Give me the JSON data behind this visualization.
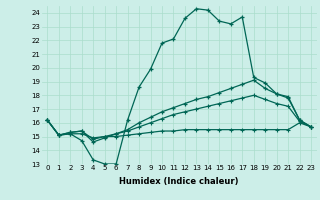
{
  "xlabel": "Humidex (Indice chaleur)",
  "bg_color": "#cceee8",
  "grid_color": "#aaddcc",
  "line_color": "#006655",
  "xlim": [
    -0.5,
    23.5
  ],
  "ylim": [
    13,
    24.5
  ],
  "yticks": [
    13,
    14,
    15,
    16,
    17,
    18,
    19,
    20,
    21,
    22,
    23,
    24
  ],
  "xticks": [
    0,
    1,
    2,
    3,
    4,
    5,
    6,
    7,
    8,
    9,
    10,
    11,
    12,
    13,
    14,
    15,
    16,
    17,
    18,
    19,
    20,
    21,
    22,
    23
  ],
  "line1_x": [
    0,
    1,
    2,
    3,
    4,
    5,
    6,
    7,
    8,
    9,
    10,
    11,
    12,
    13,
    14,
    15,
    16,
    17,
    18,
    19,
    20,
    21,
    22,
    23
  ],
  "line1_y": [
    16.2,
    15.1,
    15.2,
    14.7,
    13.3,
    13.0,
    13.0,
    16.2,
    18.6,
    19.9,
    21.8,
    22.1,
    23.6,
    24.3,
    24.2,
    23.4,
    23.2,
    23.7,
    19.3,
    18.9,
    18.1,
    17.8,
    16.2,
    15.7
  ],
  "line2_x": [
    0,
    1,
    2,
    3,
    4,
    5,
    6,
    7,
    8,
    9,
    10,
    11,
    12,
    13,
    14,
    15,
    16,
    17,
    18,
    19,
    20,
    21,
    22,
    23
  ],
  "line2_y": [
    16.2,
    15.1,
    15.3,
    15.4,
    14.6,
    14.9,
    15.2,
    15.5,
    16.0,
    16.4,
    16.8,
    17.1,
    17.4,
    17.7,
    17.9,
    18.2,
    18.5,
    18.8,
    19.1,
    18.5,
    18.1,
    17.9,
    16.2,
    15.7
  ],
  "line3_x": [
    0,
    1,
    2,
    3,
    4,
    5,
    6,
    7,
    8,
    9,
    10,
    11,
    12,
    13,
    14,
    15,
    16,
    17,
    18,
    19,
    20,
    21,
    22,
    23
  ],
  "line3_y": [
    16.2,
    15.1,
    15.3,
    15.4,
    14.8,
    15.0,
    15.2,
    15.4,
    15.7,
    16.0,
    16.3,
    16.6,
    16.8,
    17.0,
    17.2,
    17.4,
    17.6,
    17.8,
    18.0,
    17.7,
    17.4,
    17.2,
    16.1,
    15.7
  ],
  "line4_x": [
    0,
    1,
    2,
    3,
    4,
    5,
    6,
    7,
    8,
    9,
    10,
    11,
    12,
    13,
    14,
    15,
    16,
    17,
    18,
    19,
    20,
    21,
    22,
    23
  ],
  "line4_y": [
    16.2,
    15.1,
    15.2,
    15.2,
    14.9,
    15.0,
    15.0,
    15.1,
    15.2,
    15.3,
    15.4,
    15.4,
    15.5,
    15.5,
    15.5,
    15.5,
    15.5,
    15.5,
    15.5,
    15.5,
    15.5,
    15.5,
    16.0,
    15.7
  ]
}
